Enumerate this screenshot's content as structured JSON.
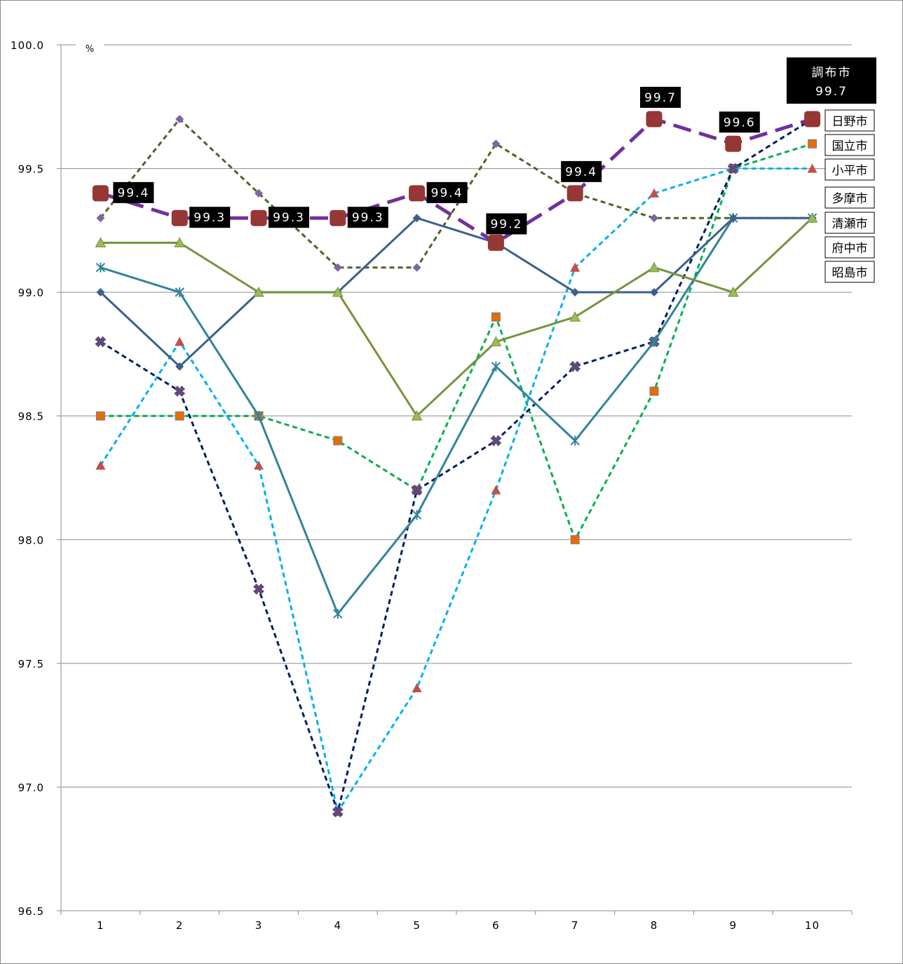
{
  "chart_data": {
    "type": "line",
    "title": "",
    "xlabel": "",
    "ylabel": "%",
    "ylim": [
      96.5,
      100.0
    ],
    "yticks": [
      "96.5",
      "97.0",
      "97.5",
      "98.0",
      "98.5",
      "99.0",
      "99.5",
      "100.0"
    ],
    "categories": [
      "1",
      "2",
      "3",
      "4",
      "5",
      "6",
      "7",
      "8",
      "9",
      "10"
    ],
    "grid": "horizontal",
    "legend_position": "right",
    "highlight_label": {
      "line1": "調布市",
      "line2": "99.7"
    },
    "series": [
      {
        "name": "",
        "color": "#7030a0",
        "dash": "long",
        "marker": "square",
        "data_labels": true,
        "values": [
          99.4,
          99.3,
          99.3,
          99.3,
          99.4,
          99.2,
          99.4,
          99.7,
          99.6,
          99.7
        ]
      },
      {
        "name": "日野市",
        "color": "#4f6228",
        "dash": "short",
        "marker": "diamond-small",
        "data_labels": false,
        "values": [
          99.3,
          99.7,
          99.4,
          99.1,
          99.1,
          99.6,
          99.4,
          99.3,
          99.3,
          99.3
        ]
      },
      {
        "name": "国立市",
        "color": "#00b050",
        "dash": "short",
        "marker": "square-small",
        "data_labels": false,
        "values": [
          98.5,
          98.5,
          98.5,
          98.4,
          98.2,
          98.9,
          98.0,
          98.6,
          99.5,
          99.6
        ]
      },
      {
        "name": "小平市",
        "color": "#00b0f0",
        "dash": "short",
        "marker": "triangle",
        "data_labels": false,
        "values": [
          98.3,
          98.8,
          98.3,
          96.9,
          97.4,
          98.2,
          99.1,
          99.4,
          99.5,
          99.5
        ]
      },
      {
        "name": "多摩市",
        "color": "#002060",
        "dash": "short",
        "marker": "diamond-large",
        "data_labels": false,
        "values": [
          98.8,
          98.6,
          97.8,
          96.9,
          98.2,
          98.4,
          98.7,
          98.8,
          99.5,
          99.7
        ]
      },
      {
        "name": "清瀬市",
        "color": "#31849b",
        "dash": "solid",
        "marker": "star",
        "data_labels": false,
        "values": [
          99.1,
          99.0,
          98.5,
          97.7,
          98.1,
          98.7,
          98.4,
          98.8,
          99.3,
          99.3
        ]
      },
      {
        "name": "府中市",
        "color": "#3c5f8e",
        "dash": "solid",
        "marker": "diamond-small",
        "data_labels": false,
        "values": [
          99.0,
          98.7,
          99.0,
          99.0,
          99.3,
          99.2,
          99.0,
          99.0,
          99.3,
          99.3
        ]
      },
      {
        "name": "昭島市",
        "color": "#77933c",
        "dash": "solid",
        "marker": "triangle",
        "data_labels": false,
        "values": [
          99.2,
          99.2,
          99.0,
          99.0,
          98.5,
          98.8,
          98.9,
          99.1,
          99.0,
          99.3
        ]
      }
    ]
  }
}
